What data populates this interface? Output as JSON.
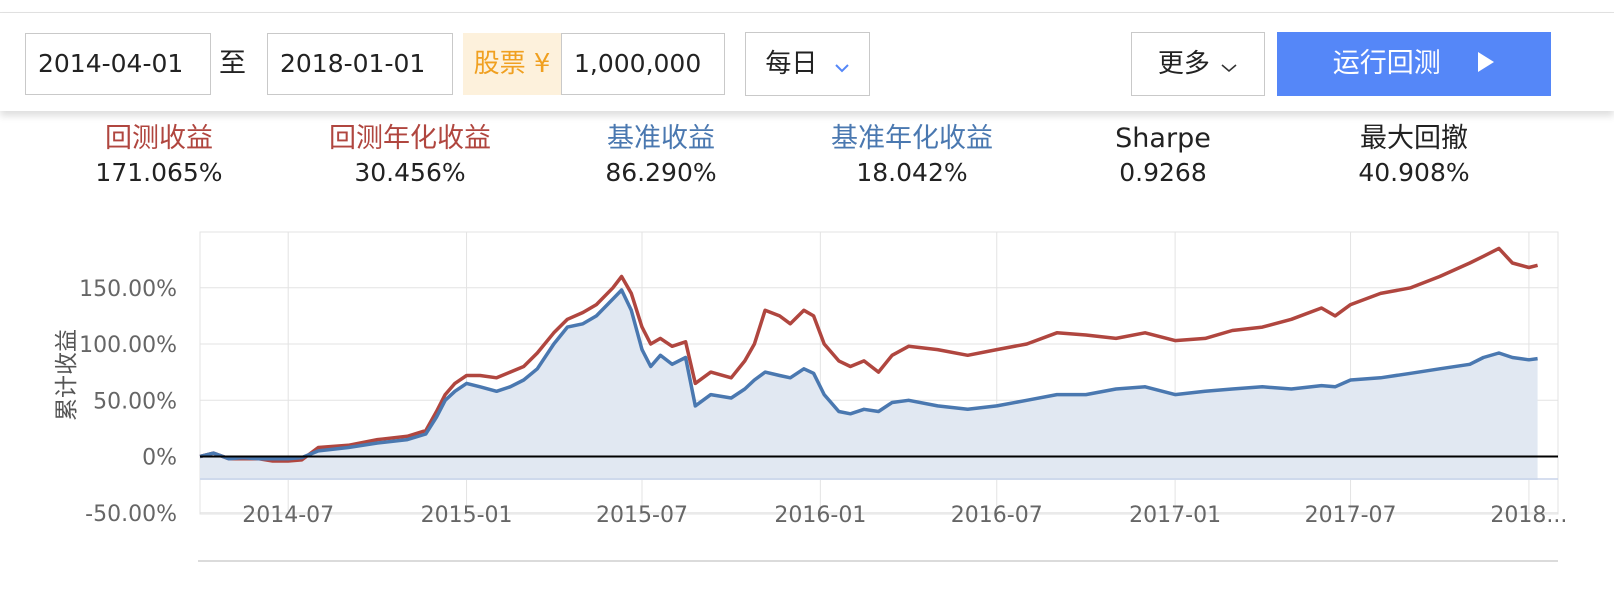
{
  "toolbar": {
    "start_date": "2014-04-01",
    "to_label": "至",
    "end_date": "2018-01-01",
    "stock_label": "股票 ¥",
    "capital": "1,000,000",
    "frequency": "每日",
    "more_label": "更多",
    "run_label": "运行回测"
  },
  "metrics": [
    {
      "label": "回测收益",
      "value": "171.065%",
      "color": "#b0463f"
    },
    {
      "label": "回测年化收益",
      "value": "30.456%",
      "color": "#b0463f"
    },
    {
      "label": "基准收益",
      "value": "86.290%",
      "color": "#4a78b0"
    },
    {
      "label": "基准年化收益",
      "value": "18.042%",
      "color": "#4a78b0"
    },
    {
      "label": "Sharpe",
      "value": "0.9268",
      "color": "#222222"
    },
    {
      "label": "最大回撤",
      "value": "40.908%",
      "color": "#222222"
    }
  ],
  "chart_data": {
    "type": "line",
    "ylabel": "累计收益",
    "ylim": [
      -50,
      170
    ],
    "yticks": [
      {
        "value": 150,
        "label": "150.00%"
      },
      {
        "value": 100,
        "label": "100.00%"
      },
      {
        "value": 50,
        "label": "50.00%"
      },
      {
        "value": 0,
        "label": "0%"
      },
      {
        "value": -50,
        "label": "-50.00%"
      }
    ],
    "xticks": [
      "2014-07",
      "2015-01",
      "2015-07",
      "2016-01",
      "2016-07",
      "2017-01",
      "2017-07",
      "2018..."
    ],
    "xtick_dates": [
      "2014-07-01",
      "2015-01-01",
      "2015-07-01",
      "2016-01-01",
      "2016-07-01",
      "2017-01-01",
      "2017-07-01",
      "2018-01-01"
    ],
    "grid": true,
    "series": [
      {
        "color": "#b0463f",
        "fill": false,
        "points": [
          [
            "2014-04-01",
            0
          ],
          [
            "2014-04-15",
            3
          ],
          [
            "2014-05-01",
            -2
          ],
          [
            "2014-05-15",
            -2
          ],
          [
            "2014-06-01",
            -2
          ],
          [
            "2014-06-15",
            -4
          ],
          [
            "2014-07-01",
            -4
          ],
          [
            "2014-07-15",
            -3
          ],
          [
            "2014-08-01",
            8
          ],
          [
            "2014-09-01",
            10
          ],
          [
            "2014-10-01",
            15
          ],
          [
            "2014-11-01",
            18
          ],
          [
            "2014-11-20",
            23
          ],
          [
            "2014-12-01",
            40
          ],
          [
            "2014-12-10",
            55
          ],
          [
            "2014-12-20",
            65
          ],
          [
            "2015-01-01",
            72
          ],
          [
            "2015-01-15",
            72
          ],
          [
            "2015-02-01",
            70
          ],
          [
            "2015-02-15",
            75
          ],
          [
            "2015-03-01",
            80
          ],
          [
            "2015-03-15",
            92
          ],
          [
            "2015-04-01",
            110
          ],
          [
            "2015-04-15",
            122
          ],
          [
            "2015-05-01",
            128
          ],
          [
            "2015-05-15",
            135
          ],
          [
            "2015-06-01",
            150
          ],
          [
            "2015-06-10",
            160
          ],
          [
            "2015-06-20",
            145
          ],
          [
            "2015-07-01",
            115
          ],
          [
            "2015-07-10",
            100
          ],
          [
            "2015-07-20",
            105
          ],
          [
            "2015-08-01",
            98
          ],
          [
            "2015-08-15",
            102
          ],
          [
            "2015-08-25",
            65
          ],
          [
            "2015-09-10",
            75
          ],
          [
            "2015-10-01",
            70
          ],
          [
            "2015-10-15",
            85
          ],
          [
            "2015-10-25",
            100
          ],
          [
            "2015-11-05",
            130
          ],
          [
            "2015-11-20",
            125
          ],
          [
            "2015-12-01",
            118
          ],
          [
            "2015-12-15",
            130
          ],
          [
            "2015-12-25",
            125
          ],
          [
            "2016-01-05",
            100
          ],
          [
            "2016-01-20",
            85
          ],
          [
            "2016-02-01",
            80
          ],
          [
            "2016-02-15",
            85
          ],
          [
            "2016-03-01",
            75
          ],
          [
            "2016-03-15",
            90
          ],
          [
            "2016-04-01",
            98
          ],
          [
            "2016-05-01",
            95
          ],
          [
            "2016-06-01",
            90
          ],
          [
            "2016-07-01",
            95
          ],
          [
            "2016-08-01",
            100
          ],
          [
            "2016-09-01",
            110
          ],
          [
            "2016-10-01",
            108
          ],
          [
            "2016-11-01",
            105
          ],
          [
            "2016-12-01",
            110
          ],
          [
            "2017-01-01",
            103
          ],
          [
            "2017-02-01",
            105
          ],
          [
            "2017-03-01",
            112
          ],
          [
            "2017-04-01",
            115
          ],
          [
            "2017-05-01",
            122
          ],
          [
            "2017-06-01",
            132
          ],
          [
            "2017-06-15",
            125
          ],
          [
            "2017-07-01",
            135
          ],
          [
            "2017-08-01",
            145
          ],
          [
            "2017-09-01",
            150
          ],
          [
            "2017-10-01",
            160
          ],
          [
            "2017-11-01",
            172
          ],
          [
            "2017-11-15",
            178
          ],
          [
            "2017-12-01",
            185
          ],
          [
            "2017-12-15",
            172
          ],
          [
            "2018-01-01",
            168
          ],
          [
            "2018-01-10",
            170
          ]
        ]
      },
      {
        "color": "#4a78b0",
        "fill": true,
        "points": [
          [
            "2014-04-01",
            0
          ],
          [
            "2014-04-15",
            3
          ],
          [
            "2014-05-01",
            -2
          ],
          [
            "2014-05-15",
            -1
          ],
          [
            "2014-06-01",
            -2
          ],
          [
            "2014-06-15",
            -2
          ],
          [
            "2014-07-01",
            -2
          ],
          [
            "2014-07-15",
            -1
          ],
          [
            "2014-08-01",
            5
          ],
          [
            "2014-09-01",
            8
          ],
          [
            "2014-10-01",
            12
          ],
          [
            "2014-11-01",
            15
          ],
          [
            "2014-11-20",
            20
          ],
          [
            "2014-12-01",
            35
          ],
          [
            "2014-12-10",
            50
          ],
          [
            "2014-12-20",
            58
          ],
          [
            "2015-01-01",
            65
          ],
          [
            "2015-01-15",
            62
          ],
          [
            "2015-02-01",
            58
          ],
          [
            "2015-02-15",
            62
          ],
          [
            "2015-03-01",
            68
          ],
          [
            "2015-03-15",
            78
          ],
          [
            "2015-04-01",
            100
          ],
          [
            "2015-04-15",
            115
          ],
          [
            "2015-05-01",
            118
          ],
          [
            "2015-05-15",
            125
          ],
          [
            "2015-06-01",
            140
          ],
          [
            "2015-06-10",
            148
          ],
          [
            "2015-06-20",
            130
          ],
          [
            "2015-07-01",
            95
          ],
          [
            "2015-07-10",
            80
          ],
          [
            "2015-07-20",
            90
          ],
          [
            "2015-08-01",
            82
          ],
          [
            "2015-08-15",
            88
          ],
          [
            "2015-08-25",
            45
          ],
          [
            "2015-09-10",
            55
          ],
          [
            "2015-10-01",
            52
          ],
          [
            "2015-10-15",
            60
          ],
          [
            "2015-10-25",
            68
          ],
          [
            "2015-11-05",
            75
          ],
          [
            "2015-11-20",
            72
          ],
          [
            "2015-12-01",
            70
          ],
          [
            "2015-12-15",
            78
          ],
          [
            "2015-12-25",
            74
          ],
          [
            "2016-01-05",
            55
          ],
          [
            "2016-01-20",
            40
          ],
          [
            "2016-02-01",
            38
          ],
          [
            "2016-02-15",
            42
          ],
          [
            "2016-03-01",
            40
          ],
          [
            "2016-03-15",
            48
          ],
          [
            "2016-04-01",
            50
          ],
          [
            "2016-05-01",
            45
          ],
          [
            "2016-06-01",
            42
          ],
          [
            "2016-07-01",
            45
          ],
          [
            "2016-08-01",
            50
          ],
          [
            "2016-09-01",
            55
          ],
          [
            "2016-10-01",
            55
          ],
          [
            "2016-11-01",
            60
          ],
          [
            "2016-12-01",
            62
          ],
          [
            "2017-01-01",
            55
          ],
          [
            "2017-02-01",
            58
          ],
          [
            "2017-03-01",
            60
          ],
          [
            "2017-04-01",
            62
          ],
          [
            "2017-05-01",
            60
          ],
          [
            "2017-06-01",
            63
          ],
          [
            "2017-06-15",
            62
          ],
          [
            "2017-07-01",
            68
          ],
          [
            "2017-08-01",
            70
          ],
          [
            "2017-09-01",
            74
          ],
          [
            "2017-10-01",
            78
          ],
          [
            "2017-11-01",
            82
          ],
          [
            "2017-11-15",
            88
          ],
          [
            "2017-12-01",
            92
          ],
          [
            "2017-12-15",
            88
          ],
          [
            "2018-01-01",
            86
          ],
          [
            "2018-01-10",
            87
          ]
        ]
      }
    ]
  }
}
